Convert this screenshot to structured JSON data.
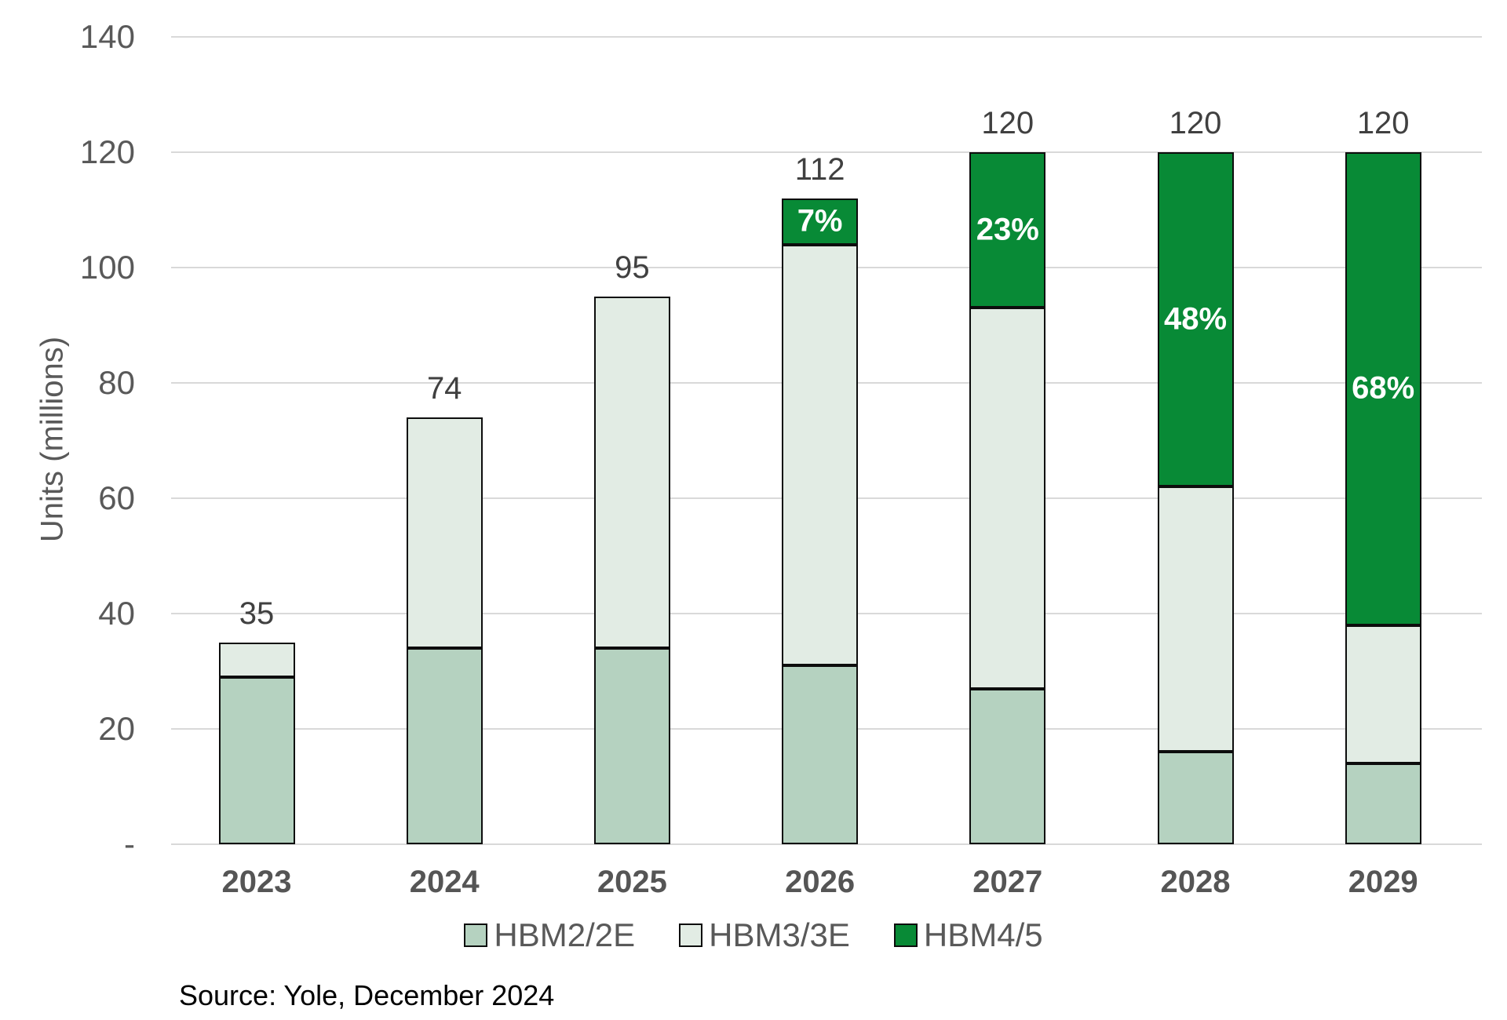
{
  "chart_data": {
    "type": "bar",
    "stacked": true,
    "ylabel": "Units (millions)",
    "categories": [
      "2023",
      "2024",
      "2025",
      "2026",
      "2027",
      "2028",
      "2029"
    ],
    "series": [
      {
        "name": "HBM2/2E",
        "color": "#b5d2c0",
        "values": [
          29,
          34,
          34,
          31,
          27,
          16,
          14
        ],
        "segment_labels": [
          "",
          "",
          "",
          "",
          "",
          "",
          ""
        ]
      },
      {
        "name": "HBM3/3E",
        "color": "#e2ece4",
        "values": [
          6,
          40,
          61,
          73,
          66,
          46,
          24
        ],
        "segment_labels": [
          "",
          "",
          "",
          "",
          "",
          "",
          ""
        ]
      },
      {
        "name": "HBM4/5",
        "color": "#088a36",
        "values": [
          0,
          0,
          0,
          8,
          27,
          58,
          82
        ],
        "segment_labels": [
          "",
          "",
          "",
          "7%",
          "23%",
          "48%",
          "68%"
        ]
      }
    ],
    "totals": [
      "35",
      "74",
      "95",
      "112",
      "120",
      "120",
      "120"
    ],
    "ylim": [
      0,
      140
    ],
    "ytick_step": 20,
    "yticks": [
      {
        "value": 0,
        "label": "-"
      },
      {
        "value": 20,
        "label": "20"
      },
      {
        "value": 40,
        "label": "40"
      },
      {
        "value": 60,
        "label": "60"
      },
      {
        "value": 80,
        "label": "80"
      },
      {
        "value": 100,
        "label": "100"
      },
      {
        "value": 120,
        "label": "120"
      },
      {
        "value": 140,
        "label": "140"
      }
    ],
    "grid": true,
    "legend_position": "bottom"
  },
  "colors": {
    "grid": "#d9d9d9",
    "axis_text": "#595959",
    "total_text": "#404040",
    "pct_text": "#ffffff",
    "segment_border": "#0d0d0d"
  },
  "source_note": "Source: Yole, December 2024"
}
